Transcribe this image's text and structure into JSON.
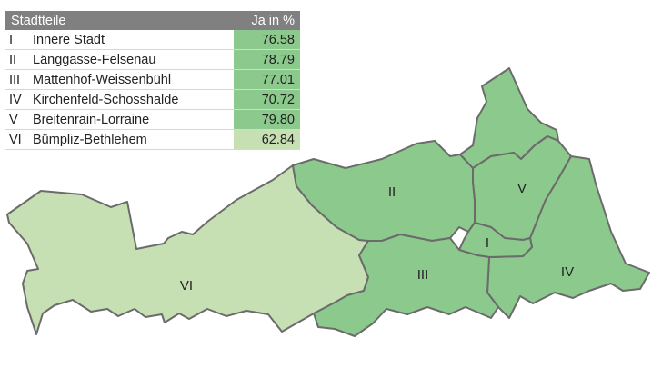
{
  "table": {
    "header": {
      "district": "Stadtteile",
      "value": "Ja in %"
    },
    "rows": [
      {
        "roman": "I",
        "name": "Innere Stadt",
        "value": "76.58",
        "color": "#8cc98c"
      },
      {
        "roman": "II",
        "name": "Länggasse-Felsenau",
        "value": "78.79",
        "color": "#8cc98c"
      },
      {
        "roman": "III",
        "name": "Mattenhof-Weissenbühl",
        "value": "77.01",
        "color": "#8cc98c"
      },
      {
        "roman": "IV",
        "name": "Kirchenfeld-Schosshalde",
        "value": "70.72",
        "color": "#8cc98c"
      },
      {
        "roman": "V",
        "name": "Breitenrain-Lorraine",
        "value": "79.80",
        "color": "#8cc98c"
      },
      {
        "roman": "VI",
        "name": "Bümpliz-Bethlehem",
        "value": "62.84",
        "color": "#c6e0b4"
      }
    ]
  },
  "map": {
    "labels": {
      "I": "I",
      "II": "II",
      "III": "III",
      "IV": "IV",
      "V": "V",
      "VI": "VI"
    },
    "colors": {
      "strong": "#8cc98c",
      "light": "#c6e0b4",
      "border": "#6b6b6b"
    }
  }
}
